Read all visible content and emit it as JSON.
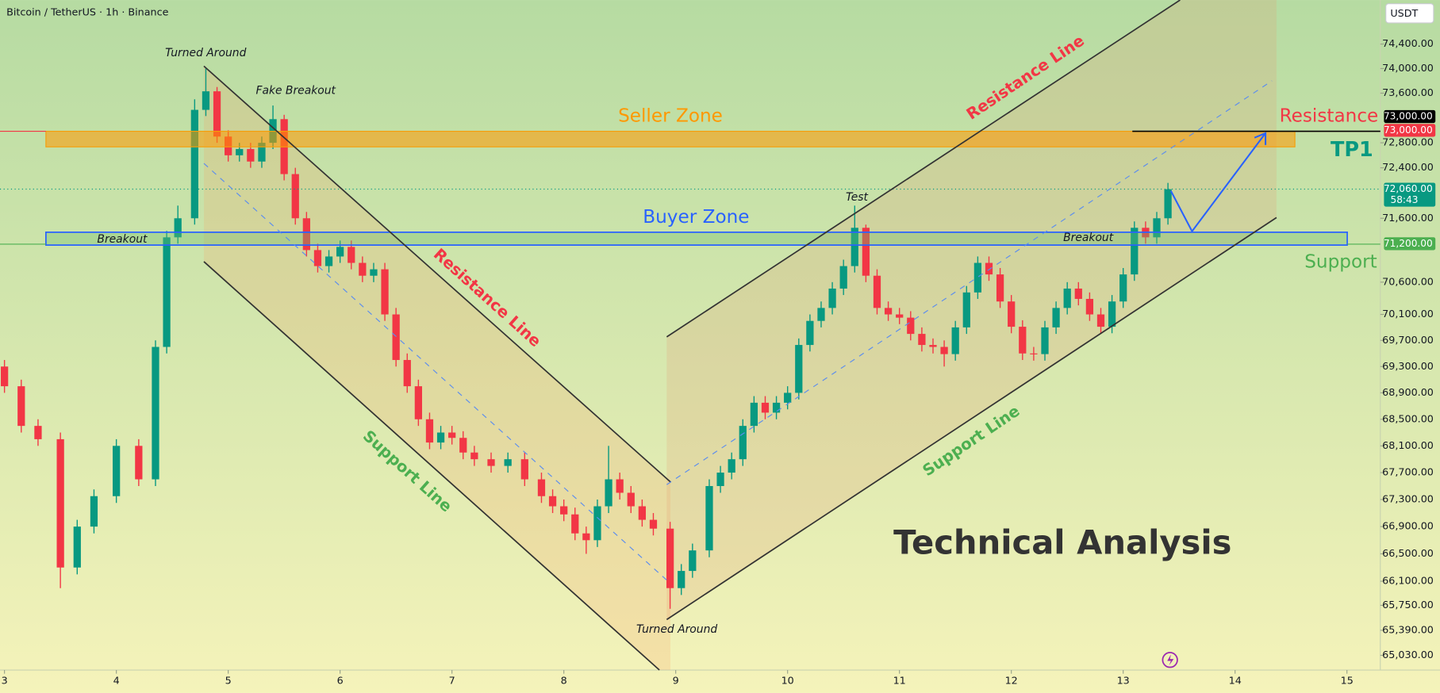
{
  "chart_data": {
    "type": "candlestick",
    "title": "Bitcoin / TetherUS · 1h · Binance",
    "currency": "USDT",
    "log_scale": true,
    "up_color": "#089981",
    "down_color": "#f23645",
    "xlim": [
      2.96,
      15.29
    ],
    "xticks": [
      3,
      4,
      5,
      6,
      7,
      8,
      9,
      10,
      11,
      12,
      13,
      14,
      15
    ],
    "ylim": [
      64820,
      75125
    ],
    "yticks": [
      {
        "value": 74400,
        "label": "74,400.00"
      },
      {
        "value": 74000,
        "label": "74,000.00"
      },
      {
        "value": 73600,
        "label": "73,600.00"
      },
      {
        "value": 72800,
        "label": "72,800.00"
      },
      {
        "value": 72400,
        "label": "72,400.00"
      },
      {
        "value": 71600,
        "label": "71,600.00"
      },
      {
        "value": 70600,
        "label": "70,600.00"
      },
      {
        "value": 70100,
        "label": "70,100.00"
      },
      {
        "value": 69700,
        "label": "69,700.00"
      },
      {
        "value": 69300,
        "label": "69,300.00"
      },
      {
        "value": 68900,
        "label": "68,900.00"
      },
      {
        "value": 68500,
        "label": "68,500.00"
      },
      {
        "value": 68100,
        "label": "68,100.00"
      },
      {
        "value": 67700,
        "label": "67,700.00"
      },
      {
        "value": 67300,
        "label": "67,300.00"
      },
      {
        "value": 66900,
        "label": "66,900.00"
      },
      {
        "value": 66500,
        "label": "66,500.00"
      },
      {
        "value": 66100,
        "label": "66,100.00"
      },
      {
        "value": 65750,
        "label": "65,750.00"
      },
      {
        "value": 65390,
        "label": "65,390.00"
      },
      {
        "value": 65030,
        "label": "65,030.00"
      }
    ],
    "price_labels": [
      {
        "value": 73000,
        "label": "73,000.00",
        "color": "#000000"
      },
      {
        "value": 73000,
        "label": "73,000.00",
        "color": "#f23645"
      },
      {
        "value": 72060,
        "label": "72,060.00",
        "color": "#089981",
        "countdown": "58:43"
      },
      {
        "value": 71200,
        "label": "71,200.00",
        "color": "#4caf50"
      }
    ],
    "annotations": [
      "Turned Around",
      "Fake Breakout",
      "Seller Zone",
      "Buyer Zone",
      "Breakout",
      "Breakout",
      "Resistance Line",
      "Support Line",
      "Resistance Line",
      "Support Line",
      "Test",
      "Turned Around",
      "Resistance",
      "TP1",
      "Support",
      "Technical Analysis"
    ],
    "x": [
      3.0,
      3.15,
      3.3,
      3.5,
      3.65,
      3.8,
      4.0,
      4.2,
      4.35,
      4.45,
      4.55,
      4.7,
      4.8,
      4.9,
      5.0,
      5.1,
      5.2,
      5.3,
      5.4,
      5.5,
      5.6,
      5.7,
      5.8,
      5.9,
      6.0,
      6.1,
      6.2,
      6.3,
      6.4,
      6.5,
      6.6,
      6.7,
      6.8,
      6.9,
      7.0,
      7.1,
      7.2,
      7.35,
      7.5,
      7.65,
      7.8,
      7.9,
      8.0,
      8.1,
      8.2,
      8.3,
      8.4,
      8.5,
      8.6,
      8.7,
      8.8,
      8.95,
      9.05,
      9.15,
      9.3,
      9.4,
      9.5,
      9.6,
      9.7,
      9.8,
      9.9,
      10.0,
      10.1,
      10.2,
      10.3,
      10.4,
      10.5,
      10.6,
      10.7,
      10.8,
      10.9,
      11.0,
      11.1,
      11.2,
      11.3,
      11.4,
      11.5,
      11.6,
      11.7,
      11.8,
      11.9,
      12.0,
      12.1,
      12.2,
      12.3,
      12.4,
      12.5,
      12.6,
      12.7,
      12.8,
      12.9,
      13.0,
      13.1,
      13.2,
      13.3,
      13.4
    ],
    "open": [
      69300,
      69000,
      68400,
      68200,
      66300,
      66900,
      67350,
      68100,
      67600,
      69600,
      71300,
      71600,
      73330,
      73630,
      72900,
      72600,
      72700,
      72500,
      72800,
      73180,
      72300,
      71600,
      71100,
      70850,
      71000,
      71150,
      70900,
      70700,
      70800,
      70100,
      69400,
      69000,
      68500,
      68150,
      68300,
      68220,
      68000,
      67900,
      67800,
      67900,
      67600,
      67350,
      67200,
      67080,
      66800,
      66700,
      67200,
      67600,
      67400,
      67200,
      67000,
      66870,
      66000,
      66250,
      66550,
      67500,
      67700,
      67900,
      68400,
      68750,
      68600,
      68750,
      68900,
      69630,
      70000,
      70200,
      70500,
      70850,
      71450,
      70700,
      70200,
      70100,
      70050,
      69800,
      69630,
      69600,
      69490,
      69900,
      70440,
      70900,
      70720,
      70300,
      69910,
      69500,
      69490,
      69900,
      70200,
      70500,
      70340,
      70100,
      69910,
      70300,
      70720,
      71450,
      71300,
      71600
    ],
    "high": [
      69400,
      69100,
      68500,
      68300,
      67000,
      67450,
      68200,
      68200,
      69700,
      71400,
      71800,
      73500,
      74000,
      73700,
      73000,
      72800,
      72800,
      72900,
      73400,
      73250,
      72400,
      71700,
      71200,
      71100,
      71250,
      71250,
      71000,
      70900,
      70900,
      70200,
      69500,
      69100,
      68600,
      68400,
      68400,
      68320,
      68100,
      68000,
      68000,
      68000,
      67700,
      67450,
      67300,
      67180,
      66900,
      67300,
      68100,
      67700,
      67500,
      67300,
      67100,
      66970,
      66350,
      66650,
      67600,
      67800,
      68000,
      68500,
      68850,
      68850,
      68850,
      69000,
      69730,
      70100,
      70300,
      70600,
      70950,
      71800,
      71500,
      70800,
      70300,
      70200,
      70150,
      69900,
      69730,
      69700,
      70000,
      70540,
      71000,
      71000,
      70820,
      70400,
      70010,
      69600,
      70000,
      70300,
      70600,
      70600,
      70440,
      70200,
      70400,
      70820,
      71550,
      71550,
      71700,
      72160
    ],
    "low": [
      68900,
      68300,
      68100,
      66000,
      66200,
      66800,
      67250,
      67500,
      67500,
      69500,
      71200,
      71500,
      73230,
      72800,
      72500,
      72500,
      72400,
      72400,
      72700,
      72200,
      71500,
      71000,
      70750,
      70750,
      70900,
      70800,
      70600,
      70600,
      70000,
      69300,
      68900,
      68400,
      68050,
      68050,
      68120,
      67900,
      67800,
      67700,
      67700,
      67500,
      67250,
      67100,
      66980,
      66700,
      66500,
      66600,
      67100,
      67300,
      67100,
      66900,
      66770,
      65700,
      65900,
      66150,
      66450,
      67400,
      67600,
      67800,
      68300,
      68500,
      68500,
      68650,
      68800,
      69530,
      69900,
      70100,
      70400,
      70750,
      70600,
      70100,
      70000,
      69950,
      69700,
      69530,
      69500,
      69300,
      69390,
      69800,
      70340,
      70620,
      70200,
      69810,
      69400,
      69390,
      69390,
      69800,
      70100,
      70240,
      70000,
      69810,
      69810,
      70200,
      70620,
      71200,
      71200,
      71500
    ],
    "close": [
      69000,
      68400,
      68200,
      66300,
      66900,
      67350,
      68100,
      67600,
      69600,
      71300,
      71600,
      73330,
      73630,
      72900,
      72600,
      72700,
      72500,
      72800,
      73180,
      72300,
      71600,
      71100,
      70850,
      71000,
      71150,
      70900,
      70700,
      70800,
      70100,
      69400,
      69000,
      68500,
      68150,
      68300,
      68220,
      68000,
      67900,
      67800,
      67900,
      67600,
      67350,
      67200,
      67080,
      66800,
      66700,
      67200,
      67600,
      67400,
      67200,
      67000,
      66870,
      66000,
      66250,
      66550,
      67500,
      67700,
      67900,
      68400,
      68750,
      68600,
      68750,
      68900,
      69630,
      70000,
      70200,
      70500,
      70850,
      71450,
      70700,
      70200,
      70100,
      70050,
      69800,
      69630,
      69600,
      69490,
      69900,
      70440,
      70900,
      70720,
      70300,
      69910,
      69500,
      69490,
      69900,
      70200,
      70500,
      70340,
      70100,
      69910,
      70300,
      70720,
      71450,
      71300,
      71600,
      72060
    ]
  }
}
